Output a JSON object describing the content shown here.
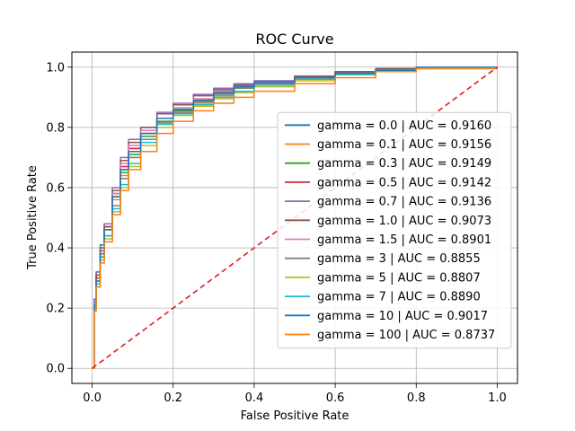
{
  "chart_data": {
    "type": "line",
    "title": "ROC Curve",
    "xlabel": "False Positive Rate",
    "ylabel": "True Positive Rate",
    "xlim": [
      -0.05,
      1.05
    ],
    "ylim": [
      -0.05,
      1.05
    ],
    "xticks": [
      "0.0",
      "0.2",
      "0.4",
      "0.6",
      "0.8",
      "1.0"
    ],
    "yticks": [
      "0.0",
      "0.2",
      "0.4",
      "0.6",
      "0.8",
      "1.0"
    ],
    "grid": true,
    "legend_position": "center-right",
    "diagonal": {
      "x": [
        0,
        1
      ],
      "y": [
        0,
        1
      ],
      "color": "#e41a1c",
      "style": "dashed"
    },
    "series": [
      {
        "name": "gamma = 0.0 | AUC = 0.9160",
        "color": "#1f77b4",
        "x": [
          0,
          0.005,
          0.01,
          0.02,
          0.03,
          0.05,
          0.07,
          0.09,
          0.12,
          0.16,
          0.2,
          0.25,
          0.3,
          0.35,
          0.4,
          0.5,
          0.6,
          0.7,
          0.8,
          1.0
        ],
        "y": [
          0,
          0.23,
          0.32,
          0.41,
          0.48,
          0.58,
          0.66,
          0.73,
          0.78,
          0.83,
          0.86,
          0.89,
          0.92,
          0.94,
          0.95,
          0.97,
          0.985,
          0.995,
          1.0,
          1.0
        ]
      },
      {
        "name": "gamma = 0.1 | AUC = 0.9156",
        "color": "#ff7f0e",
        "x": [
          0,
          0.005,
          0.01,
          0.02,
          0.03,
          0.05,
          0.07,
          0.09,
          0.12,
          0.16,
          0.2,
          0.25,
          0.3,
          0.35,
          0.4,
          0.5,
          0.6,
          0.7,
          0.8,
          1.0
        ],
        "y": [
          0,
          0.22,
          0.31,
          0.4,
          0.46,
          0.56,
          0.64,
          0.7,
          0.76,
          0.82,
          0.85,
          0.88,
          0.905,
          0.93,
          0.945,
          0.965,
          0.98,
          0.99,
          1.0,
          1.0
        ]
      },
      {
        "name": "gamma = 0.3 | AUC = 0.9149",
        "color": "#2ca02c",
        "x": [
          0,
          0.005,
          0.01,
          0.02,
          0.03,
          0.05,
          0.07,
          0.09,
          0.12,
          0.16,
          0.2,
          0.25,
          0.3,
          0.35,
          0.4,
          0.5,
          0.6,
          0.7,
          0.8,
          1.0
        ],
        "y": [
          0,
          0.22,
          0.31,
          0.4,
          0.47,
          0.57,
          0.65,
          0.71,
          0.77,
          0.82,
          0.855,
          0.885,
          0.91,
          0.93,
          0.945,
          0.965,
          0.98,
          0.99,
          1.0,
          1.0
        ]
      },
      {
        "name": "gamma = 0.5 | AUC = 0.9142",
        "color": "#d62728",
        "x": [
          0,
          0.005,
          0.01,
          0.02,
          0.03,
          0.05,
          0.07,
          0.09,
          0.12,
          0.16,
          0.2,
          0.25,
          0.3,
          0.35,
          0.4,
          0.5,
          0.6,
          0.7,
          0.8,
          1.0
        ],
        "y": [
          0,
          0.22,
          0.31,
          0.4,
          0.47,
          0.58,
          0.67,
          0.73,
          0.78,
          0.83,
          0.86,
          0.89,
          0.915,
          0.935,
          0.95,
          0.97,
          0.985,
          0.995,
          1.0,
          1.0
        ]
      },
      {
        "name": "gamma = 0.7 | AUC = 0.9136",
        "color": "#9467bd",
        "x": [
          0,
          0.005,
          0.01,
          0.02,
          0.03,
          0.05,
          0.07,
          0.09,
          0.12,
          0.16,
          0.2,
          0.25,
          0.3,
          0.35,
          0.4,
          0.5,
          0.6,
          0.7,
          0.8,
          1.0
        ],
        "y": [
          0,
          0.22,
          0.3,
          0.4,
          0.48,
          0.6,
          0.7,
          0.76,
          0.8,
          0.85,
          0.88,
          0.91,
          0.93,
          0.945,
          0.955,
          0.97,
          0.985,
          0.995,
          1.0,
          1.0
        ]
      },
      {
        "name": "gamma = 1.0 | AUC = 0.9073",
        "color": "#8c564b",
        "x": [
          0,
          0.005,
          0.01,
          0.02,
          0.03,
          0.05,
          0.07,
          0.09,
          0.12,
          0.16,
          0.2,
          0.25,
          0.3,
          0.35,
          0.4,
          0.5,
          0.6,
          0.7,
          0.8,
          1.0
        ],
        "y": [
          0,
          0.21,
          0.3,
          0.39,
          0.47,
          0.59,
          0.69,
          0.75,
          0.8,
          0.845,
          0.875,
          0.905,
          0.925,
          0.94,
          0.95,
          0.97,
          0.985,
          0.995,
          1.0,
          1.0
        ]
      },
      {
        "name": "gamma = 1.5 | AUC = 0.8901",
        "color": "#e377c2",
        "x": [
          0,
          0.005,
          0.01,
          0.02,
          0.03,
          0.05,
          0.07,
          0.09,
          0.12,
          0.16,
          0.2,
          0.25,
          0.3,
          0.35,
          0.4,
          0.5,
          0.6,
          0.7,
          0.8,
          1.0
        ],
        "y": [
          0,
          0.2,
          0.29,
          0.38,
          0.46,
          0.58,
          0.68,
          0.74,
          0.79,
          0.83,
          0.865,
          0.895,
          0.92,
          0.935,
          0.95,
          0.965,
          0.98,
          0.99,
          1.0,
          1.0
        ]
      },
      {
        "name": "gamma = 3 | AUC = 0.8855",
        "color": "#7f7f7f",
        "x": [
          0,
          0.005,
          0.01,
          0.02,
          0.03,
          0.05,
          0.07,
          0.09,
          0.12,
          0.16,
          0.2,
          0.25,
          0.3,
          0.35,
          0.4,
          0.5,
          0.6,
          0.7,
          0.8,
          1.0
        ],
        "y": [
          0,
          0.2,
          0.28,
          0.37,
          0.44,
          0.54,
          0.63,
          0.7,
          0.76,
          0.815,
          0.85,
          0.885,
          0.91,
          0.93,
          0.945,
          0.96,
          0.975,
          0.99,
          1.0,
          1.0
        ]
      },
      {
        "name": "gamma = 5 | AUC = 0.8807",
        "color": "#bcbd22",
        "x": [
          0,
          0.005,
          0.01,
          0.02,
          0.03,
          0.05,
          0.07,
          0.09,
          0.12,
          0.16,
          0.2,
          0.25,
          0.3,
          0.35,
          0.4,
          0.5,
          0.6,
          0.7,
          0.8,
          1.0
        ],
        "y": [
          0,
          0.19,
          0.27,
          0.36,
          0.43,
          0.52,
          0.6,
          0.67,
          0.74,
          0.8,
          0.84,
          0.87,
          0.895,
          0.915,
          0.935,
          0.955,
          0.975,
          0.99,
          1.0,
          1.0
        ]
      },
      {
        "name": "gamma = 7 | AUC = 0.8890",
        "color": "#17becf",
        "x": [
          0,
          0.005,
          0.01,
          0.02,
          0.03,
          0.05,
          0.07,
          0.09,
          0.12,
          0.16,
          0.2,
          0.25,
          0.3,
          0.35,
          0.4,
          0.5,
          0.6,
          0.7,
          0.8,
          1.0
        ],
        "y": [
          0,
          0.2,
          0.28,
          0.37,
          0.44,
          0.53,
          0.61,
          0.68,
          0.75,
          0.81,
          0.845,
          0.875,
          0.9,
          0.92,
          0.94,
          0.96,
          0.975,
          0.99,
          1.0,
          1.0
        ]
      },
      {
        "name": "gamma = 10 | AUC = 0.9017",
        "color": "#1f77b4",
        "x": [
          0,
          0.005,
          0.01,
          0.02,
          0.03,
          0.05,
          0.07,
          0.09,
          0.12,
          0.16,
          0.2,
          0.25,
          0.3,
          0.35,
          0.4,
          0.5,
          0.6,
          0.7,
          0.8,
          1.0
        ],
        "y": [
          0,
          0.21,
          0.29,
          0.38,
          0.46,
          0.57,
          0.66,
          0.72,
          0.78,
          0.83,
          0.86,
          0.89,
          0.915,
          0.935,
          0.95,
          0.965,
          0.98,
          0.99,
          1.0,
          1.0
        ]
      },
      {
        "name": "gamma = 100 | AUC = 0.8737",
        "color": "#ff7f0e",
        "x": [
          0,
          0.005,
          0.01,
          0.02,
          0.03,
          0.05,
          0.07,
          0.09,
          0.12,
          0.16,
          0.2,
          0.25,
          0.3,
          0.35,
          0.4,
          0.5,
          0.6,
          0.7,
          0.8,
          1.0
        ],
        "y": [
          0,
          0.19,
          0.27,
          0.35,
          0.42,
          0.51,
          0.59,
          0.66,
          0.72,
          0.78,
          0.82,
          0.855,
          0.88,
          0.9,
          0.92,
          0.945,
          0.965,
          0.985,
          0.995,
          1.0
        ]
      }
    ]
  }
}
